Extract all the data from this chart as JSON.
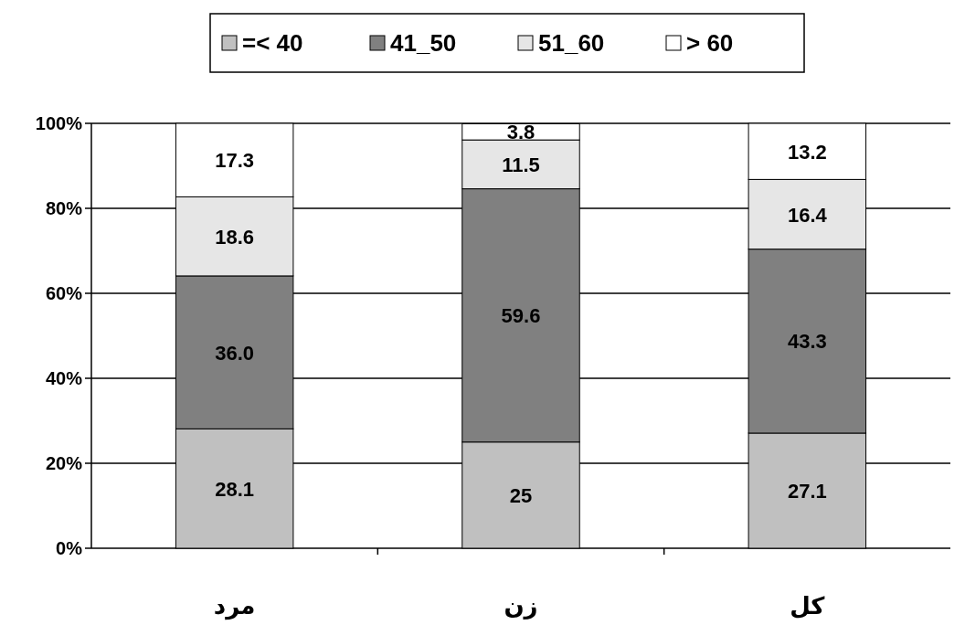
{
  "chart_data": {
    "type": "bar",
    "stacked": true,
    "categories": [
      "مرد",
      "زن",
      "کل"
    ],
    "series": [
      {
        "name": "=< 40",
        "color": "#c0c0c0",
        "values": [
          28.1,
          25,
          27.1
        ],
        "value_labels": [
          "28.1",
          "25",
          "27.1"
        ]
      },
      {
        "name": "41_50",
        "color": "#808080",
        "values": [
          36.0,
          59.6,
          43.3
        ],
        "value_labels": [
          "36.0",
          "59.6",
          "43.3"
        ]
      },
      {
        "name": "51_60",
        "color": "#e6e6e6",
        "values": [
          18.6,
          11.5,
          16.4
        ],
        "value_labels": [
          "18.6",
          "11.5",
          "16.4"
        ]
      },
      {
        "name": "> 60",
        "color": "#ffffff",
        "values": [
          17.3,
          3.8,
          13.2
        ],
        "value_labels": [
          "17.3",
          "3.8",
          "13.2"
        ]
      }
    ],
    "ylim": [
      0,
      100
    ],
    "yticks": [
      {
        "value": 0,
        "label": "0%"
      },
      {
        "value": 20,
        "label": "20%"
      },
      {
        "value": 40,
        "label": "40%"
      },
      {
        "value": 60,
        "label": "60%"
      },
      {
        "value": 80,
        "label": "80%"
      },
      {
        "value": 100,
        "label": "100%"
      }
    ],
    "grid": "y",
    "legend": "top"
  }
}
